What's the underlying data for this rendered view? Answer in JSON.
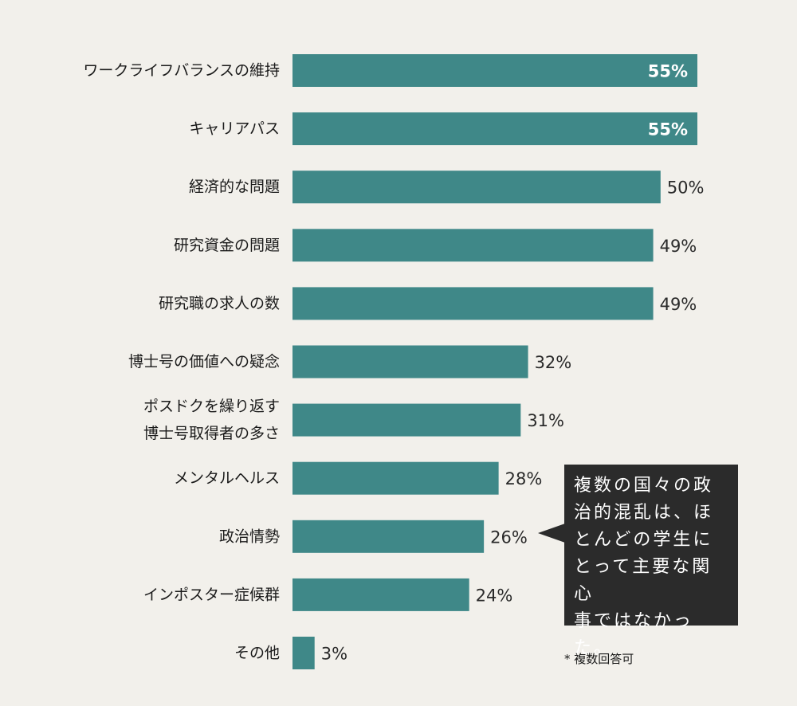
{
  "chart_data": {
    "type": "bar",
    "orientation": "horizontal",
    "categories": [
      [
        "ワークライフバランスの維持"
      ],
      [
        "キャリアパス"
      ],
      [
        "経済的な問題"
      ],
      [
        "研究資金の問題"
      ],
      [
        "研究職の求人の数"
      ],
      [
        "博士号の価値への疑念"
      ],
      [
        "ポスドクを繰り返す",
        "博士号取得者の多さ"
      ],
      [
        "メンタルヘルス"
      ],
      [
        "政治情勢"
      ],
      [
        "インポスター症候群"
      ],
      [
        "その他"
      ]
    ],
    "values": [
      55,
      55,
      50,
      49,
      49,
      32,
      31,
      28,
      26,
      24,
      3
    ],
    "value_labels": [
      "55%",
      "55%",
      "50%",
      "49%",
      "49%",
      "32%",
      "31%",
      "28%",
      "26%",
      "24%",
      "3%"
    ],
    "labels_inside": [
      true,
      true,
      false,
      false,
      false,
      false,
      false,
      false,
      false,
      false,
      false
    ],
    "xlim": [
      0,
      55
    ],
    "bar_color": "#3f8888",
    "grid": false,
    "legend": "none"
  },
  "callout": {
    "lines": [
      "複数の国々の政",
      "治的混乱は、ほ",
      "とんどの学生に",
      "とって主要な関心",
      "事ではなかった。"
    ]
  },
  "footnote": "* 複数回答可",
  "colors": {
    "background": "#f2f0eb",
    "bar": "#3f8888",
    "callout_bg": "#2b2b2b"
  }
}
